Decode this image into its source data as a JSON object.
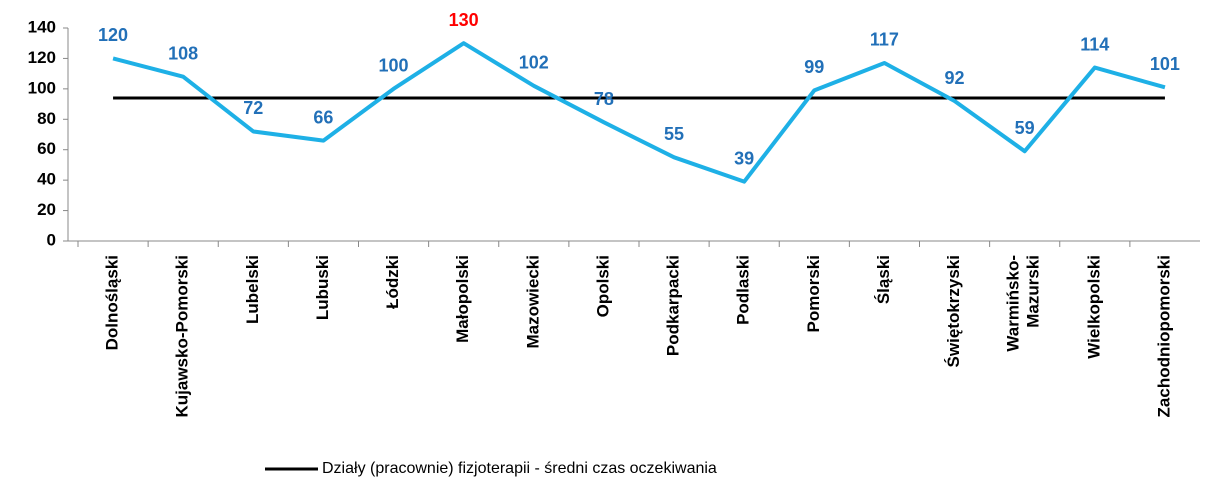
{
  "chart_data": {
    "type": "line",
    "categories": [
      "Dolnośląski",
      "Kujawsko-Pomorski",
      "Lubelski",
      "Lubuski",
      "Łódzki",
      "Małopolski",
      "Mazowiecki",
      "Opolski",
      "Podkarpacki",
      "Podlaski",
      "Pomorski",
      "Śląski",
      "Świętokrzyski",
      "Warmińsko-\nMazurski",
      "Wielkopolski",
      "Zachodniopomorski"
    ],
    "series": [
      {
        "color": "#1eb0e6",
        "values": [
          120,
          108,
          72,
          66,
          100,
          130,
          102,
          78,
          55,
          39,
          99,
          117,
          92,
          59,
          114,
          101
        ],
        "data_labels": true,
        "label_colors": [
          "#2270b8",
          "#2270b8",
          "#2270b8",
          "#2270b8",
          "#2270b8",
          "#ff0000",
          "#2270b8",
          "#2270b8",
          "#2270b8",
          "#2270b8",
          "#2270b8",
          "#2270b8",
          "#2270b8",
          "#2270b8",
          "#2270b8",
          "#2270b8"
        ]
      },
      {
        "name": "Działy (pracownie) fizjoterapii - średni czas oczekiwania",
        "color": "#000000",
        "values": [
          94,
          94,
          94,
          94,
          94,
          94,
          94,
          94,
          94,
          94,
          94,
          94,
          94,
          94,
          94,
          94
        ],
        "data_labels": false
      }
    ],
    "ylim": [
      0,
      140
    ],
    "yticks": [
      0,
      20,
      40,
      60,
      80,
      100,
      120,
      140
    ],
    "grid": false,
    "legend": "bottom"
  }
}
